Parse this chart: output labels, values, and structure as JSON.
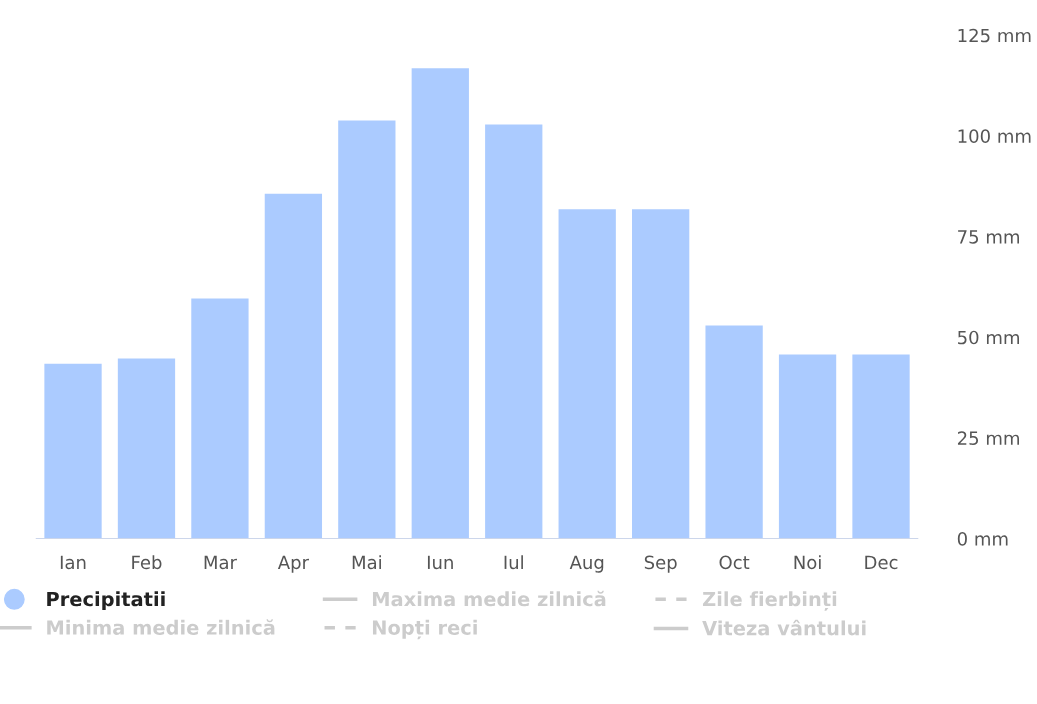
{
  "chart_data": {
    "type": "bar",
    "categories": [
      "Ian",
      "Feb",
      "Mar",
      "Apr",
      "Mai",
      "Iun",
      "Iul",
      "Aug",
      "Sep",
      "Oct",
      "Noi",
      "Dec"
    ],
    "series": [
      {
        "name": "Precipitatii",
        "color": "#abcbff",
        "values": [
          43.4,
          44.7,
          59.6,
          85.6,
          103.8,
          116.8,
          102.8,
          81.8,
          81.8,
          52.9,
          45.7,
          45.7
        ]
      },
      {
        "name": "Maxima medie zilnică",
        "type": "line",
        "color": "#cccccc",
        "line_style": "solid",
        "values": [
          null,
          null,
          null,
          null,
          null,
          null,
          null,
          null,
          null,
          null,
          null,
          null
        ]
      },
      {
        "name": "Zile fierbinți",
        "type": "line",
        "color": "#cccccc",
        "line_style": "dashed",
        "values": [
          null,
          null,
          null,
          null,
          null,
          null,
          null,
          null,
          null,
          null,
          null,
          null
        ]
      },
      {
        "name": "Minima medie zilnică",
        "type": "line",
        "color": "#cccccc",
        "line_style": "solid",
        "values": [
          null,
          null,
          null,
          null,
          null,
          null,
          null,
          null,
          null,
          null,
          null,
          null
        ]
      },
      {
        "name": "Nopți reci",
        "type": "line",
        "color": "#cccccc",
        "line_style": "dashed",
        "values": [
          null,
          null,
          null,
          null,
          null,
          null,
          null,
          null,
          null,
          null,
          null,
          null
        ]
      },
      {
        "name": "Viteza vântului",
        "type": "line",
        "color": "#cccccc",
        "line_style": "solid",
        "values": [
          null,
          null,
          null,
          null,
          null,
          null,
          null,
          null,
          null,
          null,
          null,
          null
        ]
      }
    ],
    "ylim": [
      0,
      125
    ],
    "yticks": [
      {
        "value": 0,
        "label": "0 mm"
      },
      {
        "value": 25,
        "label": "25 mm"
      },
      {
        "value": 50,
        "label": "50 mm"
      },
      {
        "value": 75,
        "label": "75 mm"
      },
      {
        "value": 100,
        "label": "100 mm"
      },
      {
        "value": 125,
        "label": "125 mm"
      }
    ],
    "grid": false,
    "legend": "bottom"
  }
}
